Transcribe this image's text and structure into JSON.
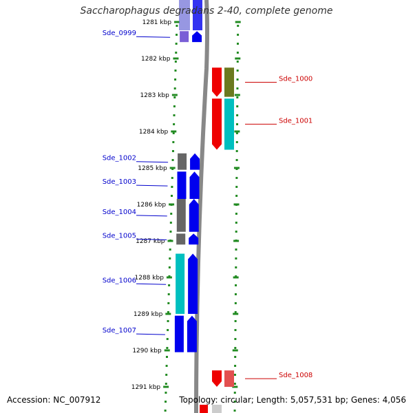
{
  "title": "Saccharophagus degradans 2-40, complete genome",
  "footer": {
    "accession": "Accession: NC_007912",
    "summary": "Topology: circular; Length: 5,057,531 bp; Genes: 4,056"
  },
  "colors": {
    "forward_label": "#0000cc",
    "reverse_label": "#cc0000",
    "ruler_dots": "#228b22",
    "backbone": "#888888"
  },
  "ruler": {
    "unit": "kbp",
    "ticks": [
      "1281 kbp",
      "1282 kbp",
      "1283 kbp",
      "1284 kbp",
      "1285 kbp",
      "1286 kbp",
      "1287 kbp",
      "1288 kbp",
      "1289 kbp",
      "1290 kbp",
      "1291 kbp"
    ]
  },
  "genes": [
    {
      "label": "Sde_0999",
      "strand": "forward",
      "start_kbp": 1281.25,
      "end_kbp": 1281.55,
      "color": "#7a5fd6"
    },
    {
      "label": "Sde_1000",
      "strand": "reverse",
      "start_kbp": 1282.25,
      "end_kbp": 1283.05,
      "color": "#6b7a1f"
    },
    {
      "label": "Sde_1001",
      "strand": "reverse",
      "start_kbp": 1283.1,
      "end_kbp": 1284.5,
      "color": "#00bfbf"
    },
    {
      "label": "Sde_1002",
      "strand": "forward",
      "start_kbp": 1284.6,
      "end_kbp": 1285.05,
      "color": "#666666"
    },
    {
      "label": "Sde_1003",
      "strand": "forward",
      "start_kbp": 1285.1,
      "end_kbp": 1285.85,
      "color": "#0000ee"
    },
    {
      "label": "Sde_1004",
      "strand": "forward",
      "start_kbp": 1285.85,
      "end_kbp": 1286.75,
      "color": "#666666"
    },
    {
      "label": "Sde_1005",
      "strand": "forward",
      "start_kbp": 1286.8,
      "end_kbp": 1287.1,
      "color": "#666666"
    },
    {
      "label": "Sde_1006",
      "strand": "forward",
      "start_kbp": 1287.35,
      "end_kbp": 1289.0,
      "color": "#00bfbf"
    },
    {
      "label": "Sde_1007",
      "strand": "forward",
      "start_kbp": 1289.05,
      "end_kbp": 1290.05,
      "color": "#0000ee"
    },
    {
      "label": "Sde_1008",
      "strand": "reverse",
      "start_kbp": 1290.55,
      "end_kbp": 1291.0,
      "color": "#e35050"
    }
  ]
}
